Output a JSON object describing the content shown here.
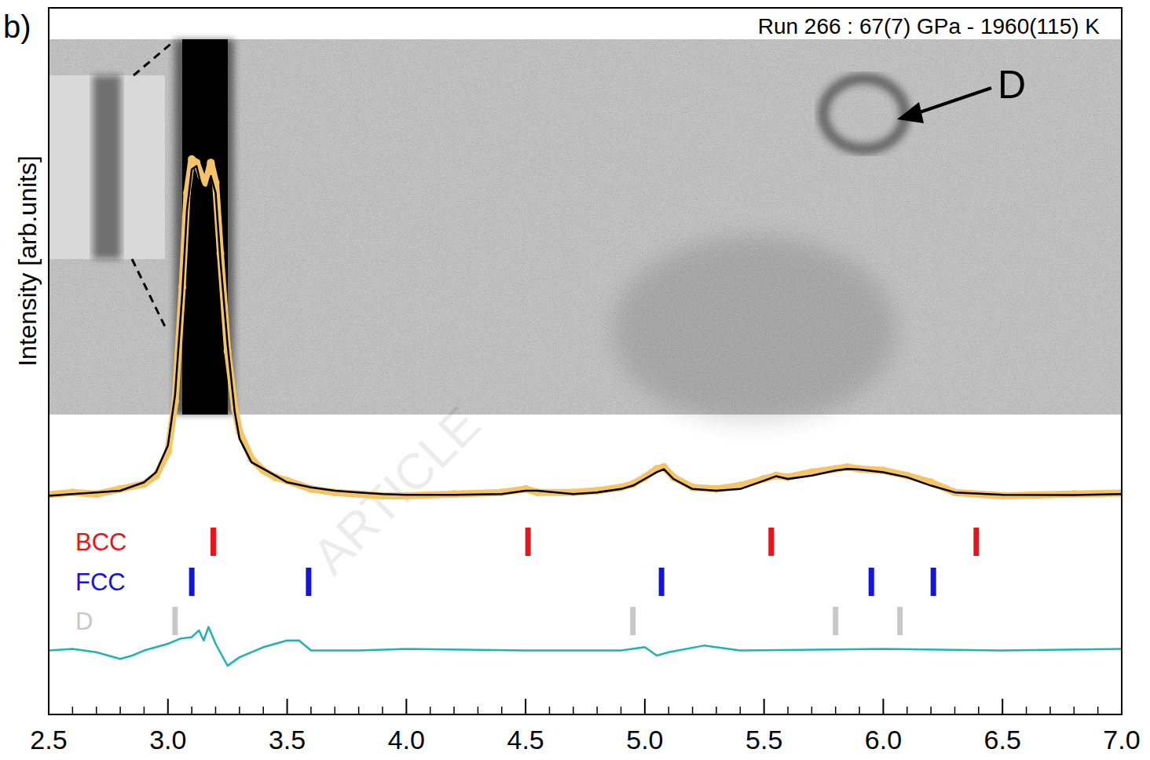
{
  "chart_data": {
    "type": "line",
    "panel_label": "b)",
    "title": "Run 266 : 67(7) GPa - 1960(115) K",
    "y_label": "Intensity [arb.units]",
    "annotation": "D",
    "watermark": "ARTICLE",
    "tick_labels": "x",
    "xlim": [
      2.5,
      7.0
    ],
    "ylim": [
      -0.65,
      1.45
    ],
    "xticks": [
      2.5,
      {
        "value": 3,
        "label": "3.0"
      },
      3.5,
      {
        "value": 4,
        "label": "4.0"
      },
      4.5,
      {
        "value": 5,
        "label": "5.0"
      },
      5.5,
      {
        "value": 6,
        "label": "6.0"
      },
      6.5,
      {
        "value": 7,
        "label": "7.0"
      }
    ],
    "series": [
      {
        "color": "#f5c466",
        "marker": "circle",
        "line_style": "solid",
        "x": [
          2.5,
          2.6,
          2.7,
          2.8,
          2.9,
          2.95,
          3.0,
          3.03,
          3.06,
          3.08,
          3.1,
          3.12,
          3.14,
          3.16,
          3.18,
          3.2,
          3.22,
          3.25,
          3.28,
          3.3,
          3.35,
          3.4,
          3.45,
          3.5,
          3.6,
          3.7,
          3.8,
          3.9,
          4.0,
          4.2,
          4.4,
          4.5,
          4.55,
          4.7,
          4.8,
          4.9,
          4.95,
          5.0,
          5.05,
          5.08,
          5.12,
          5.2,
          5.3,
          5.4,
          5.5,
          5.55,
          5.6,
          5.7,
          5.8,
          5.85,
          5.9,
          6.0,
          6.1,
          6.2,
          6.3,
          6.5,
          6.8,
          7.0
        ],
        "values": [
          0.003,
          0.01,
          0.005,
          0.02,
          0.035,
          0.06,
          0.13,
          0.28,
          0.62,
          0.9,
          1.0,
          0.99,
          0.95,
          0.93,
          0.99,
          0.93,
          0.72,
          0.43,
          0.26,
          0.19,
          0.11,
          0.075,
          0.055,
          0.045,
          0.02,
          0.01,
          0.005,
          0.0,
          0.0,
          0.005,
          0.01,
          0.02,
          0.01,
          0.01,
          0.015,
          0.025,
          0.035,
          0.055,
          0.08,
          0.085,
          0.055,
          0.025,
          0.02,
          0.03,
          0.05,
          0.06,
          0.055,
          0.07,
          0.08,
          0.085,
          0.08,
          0.075,
          0.06,
          0.04,
          0.01,
          0.0,
          0.005,
          0.008
        ]
      },
      {
        "color": "#000000",
        "line_style": "solid",
        "x": [
          2.5,
          2.6,
          2.7,
          2.8,
          2.9,
          2.95,
          3.0,
          3.03,
          3.06,
          3.08,
          3.1,
          3.12,
          3.14,
          3.16,
          3.18,
          3.2,
          3.22,
          3.25,
          3.28,
          3.3,
          3.35,
          3.4,
          3.45,
          3.5,
          3.6,
          3.7,
          3.8,
          3.9,
          4.0,
          4.2,
          4.4,
          4.5,
          4.55,
          4.7,
          4.8,
          4.9,
          4.95,
          5.0,
          5.05,
          5.08,
          5.12,
          5.2,
          5.3,
          5.4,
          5.5,
          5.55,
          5.6,
          5.7,
          5.8,
          5.85,
          5.9,
          6.0,
          6.1,
          6.2,
          6.3,
          6.5,
          6.8,
          7.0
        ],
        "values": [
          0,
          0.005,
          0.01,
          0.015,
          0.04,
          0.07,
          0.15,
          0.3,
          0.6,
          0.85,
          0.97,
          0.98,
          0.92,
          0.9,
          0.95,
          0.9,
          0.7,
          0.45,
          0.25,
          0.17,
          0.1,
          0.08,
          0.06,
          0.04,
          0.025,
          0.015,
          0.01,
          0.005,
          0.003,
          0.003,
          0.005,
          0.015,
          0.015,
          0.005,
          0.01,
          0.02,
          0.03,
          0.05,
          0.07,
          0.079,
          0.05,
          0.02,
          0.015,
          0.02,
          0.045,
          0.058,
          0.05,
          0.06,
          0.075,
          0.08,
          0.078,
          0.07,
          0.055,
          0.03,
          0.01,
          0.003,
          0.002,
          0.005
        ]
      },
      {
        "color": "#1fb3b3",
        "line_style": "solid",
        "x": [
          2.5,
          2.6,
          2.7,
          2.8,
          2.85,
          2.9,
          3.0,
          3.05,
          3.1,
          3.13,
          3.15,
          3.17,
          3.2,
          3.25,
          3.3,
          3.4,
          3.5,
          3.55,
          3.6,
          3.8,
          4.0,
          4.5,
          4.9,
          5.0,
          5.05,
          5.1,
          5.25,
          5.4,
          6.0,
          6.5,
          7.0
        ],
        "values": [
          -0.46,
          -0.455,
          -0.465,
          -0.485,
          -0.475,
          -0.46,
          -0.44,
          -0.425,
          -0.42,
          -0.4,
          -0.43,
          -0.39,
          -0.44,
          -0.505,
          -0.48,
          -0.45,
          -0.43,
          -0.43,
          -0.46,
          -0.46,
          -0.455,
          -0.46,
          -0.46,
          -0.45,
          -0.475,
          -0.465,
          -0.445,
          -0.46,
          -0.455,
          -0.46,
          -0.455
        ]
      }
    ],
    "reflections": [
      {
        "label": "BCC",
        "color": "#e8141c",
        "positions": [
          3.19,
          4.51,
          5.53,
          6.39
        ]
      },
      {
        "label": "FCC",
        "color": "#1414e0",
        "positions": [
          3.1,
          3.59,
          5.07,
          5.95,
          6.21
        ]
      },
      {
        "label": "D",
        "color": "#c8c8c8",
        "positions": [
          3.03,
          4.95,
          5.8,
          6.07
        ]
      }
    ]
  }
}
